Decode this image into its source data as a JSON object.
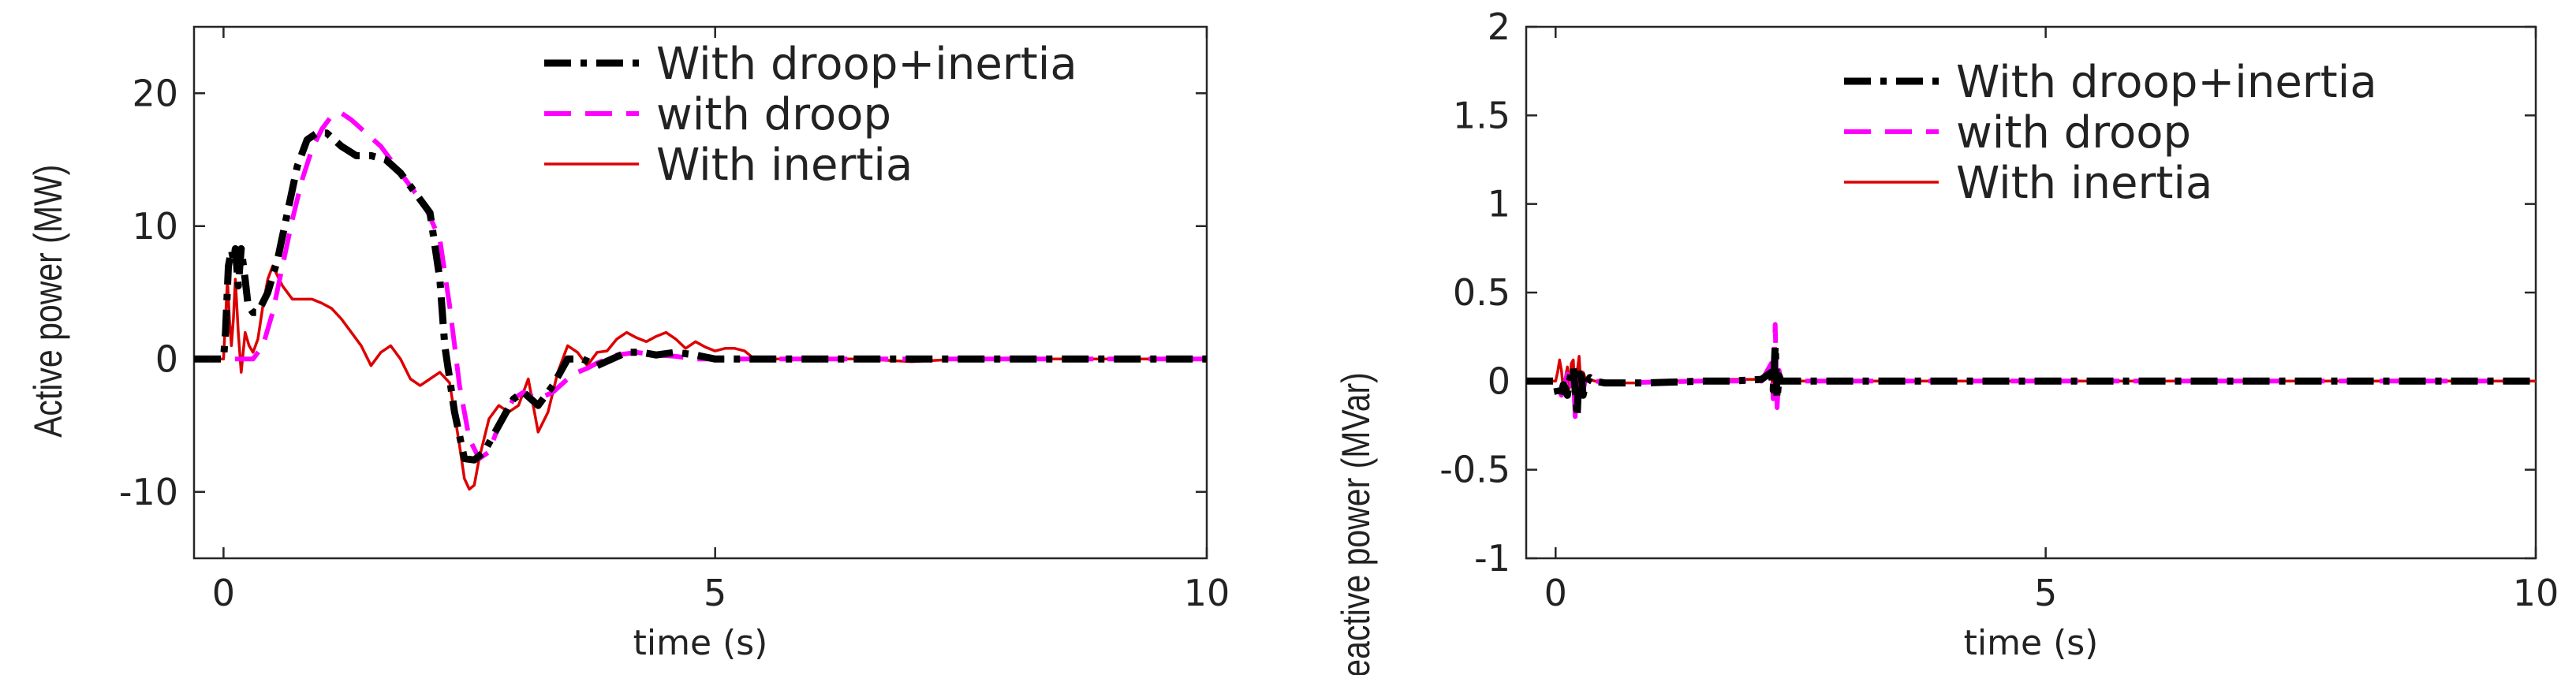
{
  "chart_data": [
    {
      "type": "line",
      "title": "",
      "xlabel": "time (s)",
      "ylabel": "Active power (MW)",
      "xlim": [
        -0.3,
        10
      ],
      "ylim": [
        -15,
        25
      ],
      "xticks": [
        0,
        5,
        10
      ],
      "yticks": [
        -10,
        0,
        10,
        20
      ],
      "xtick_labels": [
        "0",
        "5",
        "10"
      ],
      "ytick_labels": [
        "-10",
        "0",
        "10",
        "20"
      ],
      "grid": false,
      "legend_position": "top-right",
      "series": [
        {
          "name": "With droop+inertia",
          "color": "#000000",
          "style": "dash-dot",
          "x": [
            -0.3,
            0.0,
            0.02,
            0.05,
            0.08,
            0.1,
            0.12,
            0.15,
            0.18,
            0.22,
            0.25,
            0.3,
            0.35,
            0.45,
            0.55,
            0.65,
            0.75,
            0.85,
            0.95,
            1.05,
            1.2,
            1.35,
            1.5,
            1.65,
            1.8,
            1.95,
            2.1,
            2.2,
            2.25,
            2.35,
            2.45,
            2.55,
            2.65,
            2.8,
            2.95,
            3.05,
            3.2,
            3.35,
            3.5,
            3.65,
            3.8,
            3.95,
            4.1,
            4.25,
            4.4,
            4.6,
            4.8,
            5.0,
            5.2,
            5.5,
            6.0,
            7.0,
            8.0,
            9.0,
            10.0
          ],
          "y": [
            0,
            0,
            2,
            7,
            8.2,
            7.5,
            8.3,
            5.5,
            8.3,
            6,
            4,
            3.5,
            3.5,
            5,
            7.5,
            11,
            14.5,
            16.5,
            17,
            17,
            16,
            15.3,
            15.3,
            15,
            14,
            12.5,
            11,
            6,
            1,
            -4,
            -7.5,
            -7.6,
            -7,
            -5,
            -3,
            -2.5,
            -3.5,
            -2,
            0,
            0,
            -0.5,
            0,
            0.5,
            0.5,
            0.3,
            0.5,
            0.3,
            0,
            0,
            0,
            0,
            0,
            0,
            0,
            0
          ]
        },
        {
          "name": "with droop",
          "color": "#ff00ff",
          "style": "dashed",
          "x": [
            -0.3,
            0.3,
            0.4,
            0.5,
            0.6,
            0.7,
            0.8,
            0.9,
            1.0,
            1.1,
            1.2,
            1.3,
            1.45,
            1.6,
            1.75,
            1.9,
            2.05,
            2.2,
            2.3,
            2.4,
            2.5,
            2.6,
            2.7,
            2.8,
            2.95,
            3.05,
            3.2,
            3.35,
            3.5,
            3.6,
            3.7,
            3.8,
            3.9,
            4.0,
            4.2,
            4.4,
            4.6,
            4.8,
            5.0,
            5.2,
            5.5,
            6.0,
            7.0,
            8.0,
            9.0,
            10.0
          ],
          "y": [
            0,
            0,
            1,
            3.5,
            7,
            10.5,
            13.5,
            15.8,
            17.3,
            18.3,
            18.5,
            18,
            17,
            16,
            14.5,
            13,
            11.5,
            9,
            4,
            -2,
            -6,
            -7.5,
            -7,
            -5,
            -3,
            -2.5,
            -3,
            -2.5,
            -1.5,
            -1,
            -0.7,
            -0.3,
            0,
            0.3,
            0.5,
            0.3,
            0.2,
            0,
            0,
            0,
            0,
            0,
            0,
            0,
            0,
            0
          ]
        },
        {
          "name": "With inertia",
          "color": "#dd0000",
          "style": "solid",
          "x": [
            -0.3,
            0.0,
            0.02,
            0.04,
            0.06,
            0.08,
            0.1,
            0.12,
            0.15,
            0.18,
            0.22,
            0.26,
            0.3,
            0.35,
            0.4,
            0.45,
            0.5,
            0.6,
            0.7,
            0.8,
            0.9,
            1.0,
            1.1,
            1.2,
            1.3,
            1.4,
            1.5,
            1.6,
            1.7,
            1.8,
            1.9,
            2.0,
            2.1,
            2.2,
            2.3,
            2.4,
            2.45,
            2.5,
            2.55,
            2.6,
            2.7,
            2.8,
            2.9,
            3.0,
            3.1,
            3.2,
            3.3,
            3.4,
            3.5,
            3.6,
            3.7,
            3.8,
            3.9,
            4.0,
            4.1,
            4.2,
            4.3,
            4.4,
            4.5,
            4.6,
            4.7,
            4.8,
            4.9,
            5.0,
            5.1,
            5.2,
            5.3,
            5.4,
            5.6,
            6.0,
            6.5,
            7.0,
            7.5,
            8.0,
            9.0,
            10.0
          ],
          "y": [
            0,
            0,
            3,
            6,
            3,
            1,
            3,
            6,
            2,
            -1,
            2,
            1,
            0.5,
            1.5,
            4,
            6,
            7,
            5.5,
            4.5,
            4.5,
            4.5,
            4.2,
            3.8,
            3,
            2,
            1,
            -0.5,
            0.5,
            1,
            0,
            -1.5,
            -2,
            -1.5,
            -1,
            -1.8,
            -6.5,
            -9,
            -9.8,
            -9.5,
            -7.5,
            -4.5,
            -3.5,
            -4,
            -3.5,
            -1.5,
            -5.5,
            -4,
            -1,
            1,
            0.5,
            -0.5,
            0.5,
            0.6,
            1.5,
            2,
            1.6,
            1.3,
            1.7,
            2,
            1.5,
            0.8,
            1.3,
            0.9,
            0.6,
            0.8,
            0.8,
            0.6,
            0,
            0,
            0,
            0,
            -0.2,
            0,
            0,
            0,
            0
          ]
        }
      ]
    },
    {
      "type": "line",
      "title": "",
      "xlabel": "time (s)",
      "ylabel": "Reactive power (MVar)",
      "xlim": [
        -0.3,
        10
      ],
      "ylim": [
        -1,
        2
      ],
      "xticks": [
        0,
        5,
        10
      ],
      "yticks": [
        -1,
        -0.5,
        0,
        0.5,
        1,
        1.5,
        2
      ],
      "xtick_labels": [
        "0",
        "5",
        "10"
      ],
      "ytick_labels": [
        "-1",
        "-0.5",
        "0",
        "0.5",
        "1",
        "1.5",
        "2"
      ],
      "grid": false,
      "legend_position": "top-right",
      "series": [
        {
          "name": "With droop+inertia",
          "color": "#000000",
          "style": "dash-dot",
          "x": [
            -0.3,
            0.0,
            0.02,
            0.04,
            0.06,
            0.08,
            0.1,
            0.12,
            0.14,
            0.16,
            0.18,
            0.2,
            0.22,
            0.24,
            0.26,
            0.28,
            0.3,
            0.35,
            0.4,
            0.5,
            0.7,
            0.9,
            1.2,
            1.5,
            1.8,
            2.1,
            2.2,
            2.22,
            2.24,
            2.26,
            2.28,
            2.3,
            2.35,
            2.5,
            3.0,
            4.0,
            5.0,
            6.0,
            7.0,
            8.0,
            9.0,
            10.0
          ],
          "y": [
            0,
            0,
            -0.06,
            -0.1,
            -0.06,
            -0.02,
            -0.04,
            -0.08,
            0,
            0.05,
            0.08,
            -0.05,
            -0.2,
            0.08,
            0.05,
            -0.08,
            -0.03,
            0.02,
            0,
            -0.01,
            -0.01,
            -0.01,
            -0.005,
            0,
            0,
            0.01,
            0.05,
            -0.05,
            0.2,
            -0.1,
            0.03,
            0,
            0,
            0,
            0,
            0,
            0,
            0,
            0,
            0,
            0,
            0
          ]
        },
        {
          "name": "with droop",
          "color": "#ff00ff",
          "style": "dashed",
          "x": [
            -0.3,
            0.0,
            0.03,
            0.06,
            0.09,
            0.12,
            0.15,
            0.18,
            0.2,
            0.22,
            0.24,
            0.26,
            0.28,
            0.3,
            0.35,
            0.4,
            0.6,
            1.0,
            1.5,
            2.1,
            2.2,
            2.22,
            2.24,
            2.26,
            2.28,
            2.3,
            2.35,
            2.5,
            3.0,
            4.0,
            5.0,
            6.0,
            7.0,
            8.0,
            9.0,
            10.0
          ],
          "y": [
            0,
            0,
            -0.05,
            -0.08,
            -0.02,
            0.04,
            -0.04,
            0.06,
            -0.2,
            0.06,
            -0.1,
            0.04,
            -0.06,
            0,
            0.02,
            0,
            -0.01,
            -0.005,
            0,
            0,
            0.1,
            -0.1,
            0.32,
            -0.15,
            0.06,
            0,
            0,
            0,
            0,
            0,
            0,
            0,
            0,
            0,
            0,
            0
          ]
        },
        {
          "name": "With inertia",
          "color": "#dd0000",
          "style": "solid",
          "x": [
            -0.3,
            0.0,
            0.02,
            0.04,
            0.06,
            0.08,
            0.1,
            0.12,
            0.14,
            0.16,
            0.18,
            0.2,
            0.22,
            0.24,
            0.26,
            0.28,
            0.3,
            0.35,
            0.4,
            0.5,
            0.7,
            0.9,
            1.1,
            1.3,
            1.5,
            1.7,
            1.9,
            2.1,
            2.2,
            2.22,
            2.24,
            2.26,
            2.28,
            2.3,
            2.35,
            2.5,
            3.0,
            4.0,
            5.0,
            6.0,
            7.0,
            8.0,
            9.0,
            10.0
          ],
          "y": [
            0,
            0,
            0.05,
            0.12,
            0.06,
            -0.05,
            0.02,
            0.08,
            -0.04,
            0.1,
            0.12,
            -0.08,
            0.05,
            0.14,
            -0.04,
            0.05,
            0.02,
            0.01,
            0,
            -0.01,
            -0.01,
            -0.01,
            0,
            0,
            0,
            0.01,
            0.01,
            0.01,
            0.05,
            -0.08,
            0.1,
            -0.05,
            0.03,
            0,
            0,
            0,
            0,
            0,
            0,
            0,
            0,
            0,
            0,
            0
          ]
        }
      ]
    }
  ]
}
